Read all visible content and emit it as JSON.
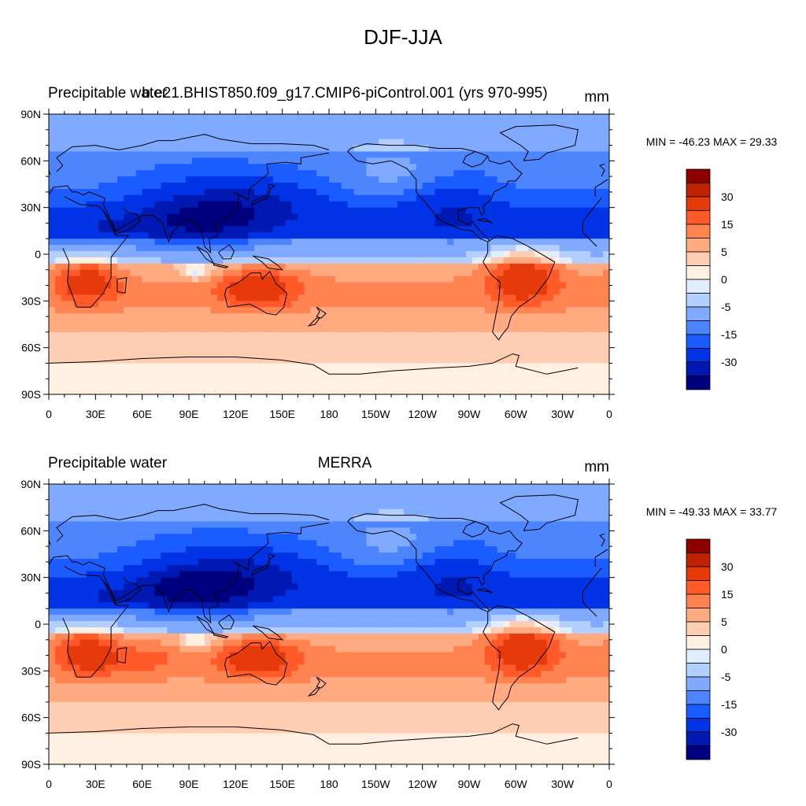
{
  "title": "DJF-JJA",
  "colors": {
    "levels": [
      "#00007f",
      "#0019b3",
      "#0033e6",
      "#1a5cff",
      "#4d85ff",
      "#80aaff",
      "#b3cfff",
      "#e0edff",
      "#fff0e1",
      "#ffcdb3",
      "#ffaa80",
      "#ff8452",
      "#ff5a28",
      "#e63a0a",
      "#bf2200",
      "#8c0000"
    ]
  },
  "chart_data": [
    {
      "type": "heatmap",
      "left_title": "Precipitable water",
      "center_title": "b.e21.BHIST850.f09_g17.CMIP6-piControl.001 (yrs 970-995)",
      "units": "mm",
      "stats": "MIN = -46.23 MAX =  29.33",
      "min": -46.23,
      "max": 29.33,
      "x_ticks": [
        "0",
        "30E",
        "60E",
        "90E",
        "120E",
        "150E",
        "180",
        "150W",
        "120W",
        "90W",
        "60W",
        "30W",
        "0"
      ],
      "y_ticks": [
        "90N",
        "60N",
        "30N",
        "0",
        "30S",
        "60S",
        "90S"
      ],
      "colorbar_labels": [
        "30",
        "15",
        "5",
        "0",
        "-5",
        "-15",
        "-30"
      ],
      "xlim": [
        0,
        360
      ],
      "ylim": [
        -90,
        90
      ]
    },
    {
      "type": "heatmap",
      "left_title": "Precipitable water",
      "center_title": "MERRA",
      "units": "mm",
      "stats": "MIN = -49.33 MAX =  33.77",
      "min": -49.33,
      "max": 33.77,
      "x_ticks": [
        "0",
        "30E",
        "60E",
        "90E",
        "120E",
        "150E",
        "180",
        "150W",
        "120W",
        "90W",
        "60W",
        "30W",
        "0"
      ],
      "y_ticks": [
        "90N",
        "60N",
        "30N",
        "0",
        "30S",
        "60S",
        "90S"
      ],
      "colorbar_labels": [
        "30",
        "15",
        "5",
        "0",
        "-5",
        "-15",
        "-30"
      ],
      "xlim": [
        0,
        360
      ],
      "ylim": [
        -90,
        90
      ]
    }
  ]
}
